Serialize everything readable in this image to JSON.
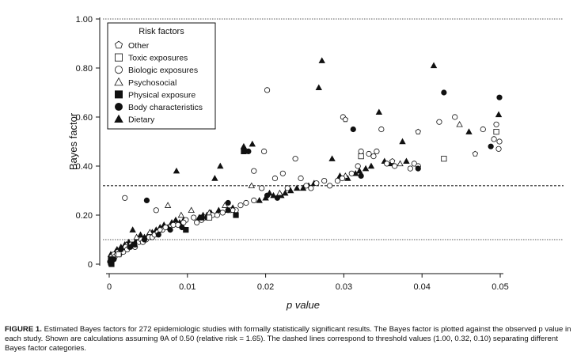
{
  "chart_data": {
    "type": "scatter",
    "xlabel": "p value",
    "ylabel": "Bayes factor",
    "xlim": [
      0,
      0.05
    ],
    "ylim": [
      0,
      1.0
    ],
    "x_ticks": [
      "0",
      "0.01",
      "0.02",
      "0.03",
      "0.04",
      "0.05"
    ],
    "x_tick_values": [
      0,
      0.01,
      0.02,
      0.03,
      0.04,
      0.05
    ],
    "y_ticks": [
      "0",
      "0.20",
      "0.40",
      "0.60",
      "0.80",
      "1.00"
    ],
    "y_tick_values": [
      0,
      0.2,
      0.4,
      0.6,
      0.8,
      1.0
    ],
    "thresholds": [
      {
        "value": 1.0,
        "style": "dotted"
      },
      {
        "value": 0.32,
        "style": "dashed"
      },
      {
        "value": 0.1,
        "style": "dotted"
      }
    ],
    "legend": {
      "title": "Risk factors",
      "placement": "top-left",
      "entries": [
        {
          "label": "Other",
          "marker": "pentagon-open"
        },
        {
          "label": "Toxic exposures",
          "marker": "square-open"
        },
        {
          "label": "Biologic exposures",
          "marker": "circle-open"
        },
        {
          "label": "Psychosocial",
          "marker": "triangle-open"
        },
        {
          "label": "Physical exposure",
          "marker": "square-filled"
        },
        {
          "label": "Body characteristics",
          "marker": "circle-filled"
        },
        {
          "label": "Dietary",
          "marker": "triangle-filled"
        }
      ]
    },
    "series": [
      {
        "marker": "triangle-filled",
        "points": [
          [
            0.0002,
            0.04
          ],
          [
            0.0005,
            0.03
          ],
          [
            0.0008,
            0.05
          ],
          [
            0.001,
            0.06
          ],
          [
            0.0012,
            0.05
          ],
          [
            0.0015,
            0.07
          ],
          [
            0.002,
            0.08
          ],
          [
            0.0025,
            0.09
          ],
          [
            0.003,
            0.14
          ],
          [
            0.0035,
            0.1
          ],
          [
            0.004,
            0.12
          ],
          [
            0.0045,
            0.11
          ],
          [
            0.005,
            0.12
          ],
          [
            0.0055,
            0.13
          ],
          [
            0.006,
            0.14
          ],
          [
            0.0065,
            0.15
          ],
          [
            0.007,
            0.16
          ],
          [
            0.0075,
            0.15
          ],
          [
            0.008,
            0.17
          ],
          [
            0.0085,
            0.18
          ],
          [
            0.009,
            0.17
          ],
          [
            0.0095,
            0.18
          ],
          [
            0.0086,
            0.38
          ],
          [
            0.0115,
            0.19
          ],
          [
            0.012,
            0.2
          ],
          [
            0.0125,
            0.2
          ],
          [
            0.013,
            0.21
          ],
          [
            0.0135,
            0.35
          ],
          [
            0.014,
            0.22
          ],
          [
            0.0142,
            0.4
          ],
          [
            0.0152,
            0.22
          ],
          [
            0.0158,
            0.23
          ],
          [
            0.0172,
            0.48
          ],
          [
            0.0183,
            0.49
          ],
          [
            0.0192,
            0.26
          ],
          [
            0.02,
            0.27
          ],
          [
            0.0205,
            0.29
          ],
          [
            0.021,
            0.28
          ],
          [
            0.022,
            0.28
          ],
          [
            0.0225,
            0.29
          ],
          [
            0.0232,
            0.3
          ],
          [
            0.024,
            0.31
          ],
          [
            0.0248,
            0.31
          ],
          [
            0.0255,
            0.32
          ],
          [
            0.0262,
            0.33
          ],
          [
            0.0268,
            0.72
          ],
          [
            0.0272,
            0.83
          ],
          [
            0.0285,
            0.43
          ],
          [
            0.0295,
            0.36
          ],
          [
            0.0305,
            0.35
          ],
          [
            0.0315,
            0.37
          ],
          [
            0.032,
            0.38
          ],
          [
            0.0328,
            0.39
          ],
          [
            0.0335,
            0.4
          ],
          [
            0.0345,
            0.62
          ],
          [
            0.0352,
            0.42
          ],
          [
            0.036,
            0.41
          ],
          [
            0.0375,
            0.5
          ],
          [
            0.038,
            0.42
          ],
          [
            0.0415,
            0.81
          ],
          [
            0.046,
            0.54
          ],
          [
            0.0498,
            0.61
          ]
        ]
      },
      {
        "marker": "triangle-open",
        "points": [
          [
            0.0012,
            0.05
          ],
          [
            0.0022,
            0.08
          ],
          [
            0.0035,
            0.11
          ],
          [
            0.0052,
            0.13
          ],
          [
            0.0075,
            0.24
          ],
          [
            0.0092,
            0.2
          ],
          [
            0.0105,
            0.22
          ],
          [
            0.0128,
            0.21
          ],
          [
            0.0148,
            0.24
          ],
          [
            0.0182,
            0.32
          ],
          [
            0.0218,
            0.29
          ],
          [
            0.0302,
            0.36
          ],
          [
            0.0372,
            0.41
          ],
          [
            0.0448,
            0.57
          ]
        ]
      },
      {
        "marker": "circle-open",
        "points": [
          [
            0.0003,
            0.03
          ],
          [
            0.0004,
            0.02
          ],
          [
            0.0006,
            0.04
          ],
          [
            0.0007,
            0.03
          ],
          [
            0.001,
            0.04
          ],
          [
            0.0011,
            0.05
          ],
          [
            0.0013,
            0.04
          ],
          [
            0.0014,
            0.05
          ],
          [
            0.0017,
            0.06
          ],
          [
            0.0018,
            0.05
          ],
          [
            0.0021,
            0.07
          ],
          [
            0.0023,
            0.06
          ],
          [
            0.0026,
            0.07
          ],
          [
            0.0028,
            0.08
          ],
          [
            0.0031,
            0.08
          ],
          [
            0.0033,
            0.07
          ],
          [
            0.0038,
            0.09
          ],
          [
            0.0041,
            0.1
          ],
          [
            0.0043,
            0.09
          ],
          [
            0.0047,
            0.1
          ],
          [
            0.0051,
            0.11
          ],
          [
            0.0055,
            0.11
          ],
          [
            0.0058,
            0.12
          ],
          [
            0.0062,
            0.13
          ],
          [
            0.0068,
            0.14
          ],
          [
            0.0072,
            0.15
          ],
          [
            0.0082,
            0.16
          ],
          [
            0.0088,
            0.16
          ],
          [
            0.0098,
            0.18
          ],
          [
            0.0108,
            0.19
          ],
          [
            0.0112,
            0.17
          ],
          [
            0.0118,
            0.18
          ],
          [
            0.0122,
            0.19
          ],
          [
            0.0132,
            0.2
          ],
          [
            0.0138,
            0.2
          ],
          [
            0.0145,
            0.21
          ],
          [
            0.0155,
            0.22
          ],
          [
            0.0162,
            0.22
          ],
          [
            0.0168,
            0.24
          ],
          [
            0.0175,
            0.25
          ],
          [
            0.0185,
            0.26
          ],
          [
            0.0195,
            0.31
          ],
          [
            0.0198,
            0.46
          ],
          [
            0.0202,
            0.71
          ],
          [
            0.0212,
            0.35
          ],
          [
            0.0222,
            0.37
          ],
          [
            0.0228,
            0.31
          ],
          [
            0.0238,
            0.43
          ],
          [
            0.0245,
            0.35
          ],
          [
            0.0252,
            0.32
          ],
          [
            0.0258,
            0.31
          ],
          [
            0.0265,
            0.33
          ],
          [
            0.0275,
            0.34
          ],
          [
            0.0282,
            0.32
          ],
          [
            0.0292,
            0.34
          ],
          [
            0.0298,
            0.35
          ],
          [
            0.0299,
            0.6
          ],
          [
            0.031,
            0.37
          ],
          [
            0.0318,
            0.4
          ],
          [
            0.0322,
            0.46
          ],
          [
            0.0332,
            0.45
          ],
          [
            0.0338,
            0.44
          ],
          [
            0.0342,
            0.46
          ],
          [
            0.0348,
            0.55
          ],
          [
            0.0355,
            0.41
          ],
          [
            0.0365,
            0.4
          ],
          [
            0.0385,
            0.39
          ],
          [
            0.039,
            0.41
          ],
          [
            0.0395,
            0.4
          ],
          [
            0.0422,
            0.58
          ],
          [
            0.0442,
            0.6
          ],
          [
            0.0478,
            0.55
          ],
          [
            0.0492,
            0.51
          ],
          [
            0.0495,
            0.57
          ],
          [
            0.0498,
            0.47
          ],
          [
            0.0499,
            0.5
          ],
          [
            0.0495,
            0.54
          ],
          [
            0.0185,
            0.38
          ],
          [
            0.0095,
            0.17
          ],
          [
            0.002,
            0.27
          ],
          [
            0.006,
            0.22
          ]
        ]
      },
      {
        "marker": "circle-filled",
        "points": [
          [
            0.0001,
            0.01
          ],
          [
            0.0002,
            0.0
          ],
          [
            0.0006,
            0.02
          ],
          [
            0.0015,
            0.06
          ],
          [
            0.0027,
            0.07
          ],
          [
            0.0045,
            0.1
          ],
          [
            0.0048,
            0.26
          ],
          [
            0.0063,
            0.12
          ],
          [
            0.0078,
            0.14
          ],
          [
            0.0093,
            0.15
          ],
          [
            0.0125,
            0.19
          ],
          [
            0.0152,
            0.25
          ],
          [
            0.0178,
            0.46
          ],
          [
            0.0202,
            0.28
          ],
          [
            0.0215,
            0.27
          ],
          [
            0.0312,
            0.55
          ],
          [
            0.0322,
            0.36
          ],
          [
            0.0395,
            0.39
          ],
          [
            0.0428,
            0.7
          ],
          [
            0.0488,
            0.48
          ],
          [
            0.0499,
            0.68
          ],
          [
            0.0152,
            0.22
          ]
        ]
      },
      {
        "marker": "square-filled",
        "points": [
          [
            0.0002,
            0.02
          ],
          [
            0.0003,
            0.0
          ],
          [
            0.0032,
            0.08
          ],
          [
            0.0098,
            0.14
          ],
          [
            0.0118,
            0.19
          ],
          [
            0.0162,
            0.2
          ],
          [
            0.0172,
            0.46
          ]
        ]
      },
      {
        "marker": "square-open",
        "points": [
          [
            0.0012,
            0.04
          ],
          [
            0.0128,
            0.19
          ],
          [
            0.0322,
            0.44
          ],
          [
            0.0428,
            0.43
          ],
          [
            0.0495,
            0.54
          ]
        ]
      },
      {
        "marker": "pentagon-open",
        "points": [
          [
            0.0065,
            0.14
          ],
          [
            0.0158,
            0.22
          ],
          [
            0.0302,
            0.59
          ],
          [
            0.0362,
            0.42
          ],
          [
            0.0395,
            0.54
          ],
          [
            0.0468,
            0.45
          ]
        ]
      }
    ]
  },
  "caption": {
    "label": "FIGURE 1.",
    "text": "Estimated Bayes factors for 272 epidemiologic studies with formally statistically significant results. The Bayes factor is plotted against the observed p value in each study. Shown are calculations assuming θA of 0.50 (relative risk = 1.65). The dashed lines correspond to threshold values (1.00, 0.32, 0.10) separating different Bayes factor categories."
  }
}
